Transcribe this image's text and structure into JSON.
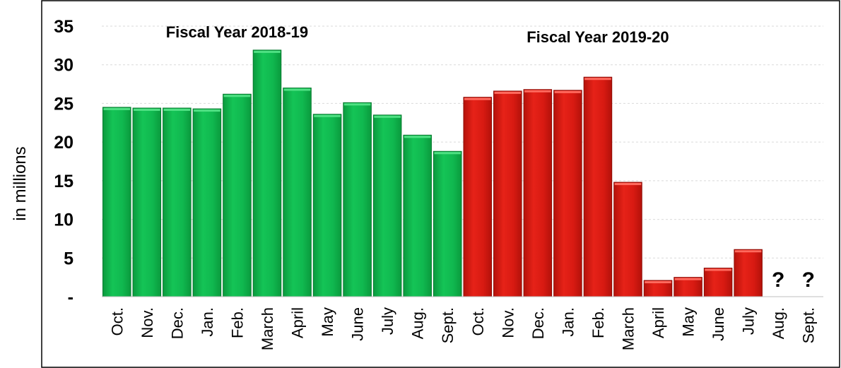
{
  "chart_data": {
    "type": "bar",
    "ylabel": "in millions",
    "ylim": [
      0,
      35
    ],
    "yticks": [
      {
        "value": 0,
        "label": "-"
      },
      {
        "value": 5,
        "label": "5"
      },
      {
        "value": 10,
        "label": "10"
      },
      {
        "value": 15,
        "label": "15"
      },
      {
        "value": 20,
        "label": "20"
      },
      {
        "value": 25,
        "label": "25"
      },
      {
        "value": 30,
        "label": "30"
      },
      {
        "value": 35,
        "label": "35"
      }
    ],
    "categories": [
      "Oct.",
      "Nov.",
      "Dec.",
      "Jan.",
      "Feb.",
      "March",
      "April",
      "May",
      "June",
      "July",
      "Aug.",
      "Sept.",
      "Oct.",
      "Nov.",
      "Dec.",
      "Jan.",
      "Feb.",
      "March",
      "April",
      "May",
      "June",
      "July",
      "Aug.",
      "Sept."
    ],
    "series": [
      {
        "name": "Fiscal Year 2018-19",
        "color": "#11b84f",
        "values": [
          24.5,
          24.4,
          24.4,
          24.3,
          26.2,
          31.9,
          27.0,
          23.6,
          25.1,
          23.5,
          20.9,
          18.8,
          null,
          null,
          null,
          null,
          null,
          null,
          null,
          null,
          null,
          null,
          null,
          null
        ]
      },
      {
        "name": "Fiscal Year 2019-20",
        "color": "#dd1a12",
        "values": [
          null,
          null,
          null,
          null,
          null,
          null,
          null,
          null,
          null,
          null,
          null,
          null,
          25.8,
          26.6,
          26.8,
          26.7,
          28.4,
          14.8,
          2.1,
          2.5,
          3.7,
          6.1,
          null,
          null
        ]
      }
    ],
    "annotations": [
      {
        "text": "Fiscal Year 2018-19",
        "category_index": 4
      },
      {
        "text": "Fiscal Year 2019-20",
        "category_index": 16
      },
      {
        "text": "?",
        "category_index": 22
      },
      {
        "text": "?",
        "category_index": 23
      }
    ],
    "grid": "horizontal dashed",
    "legend": "none"
  }
}
